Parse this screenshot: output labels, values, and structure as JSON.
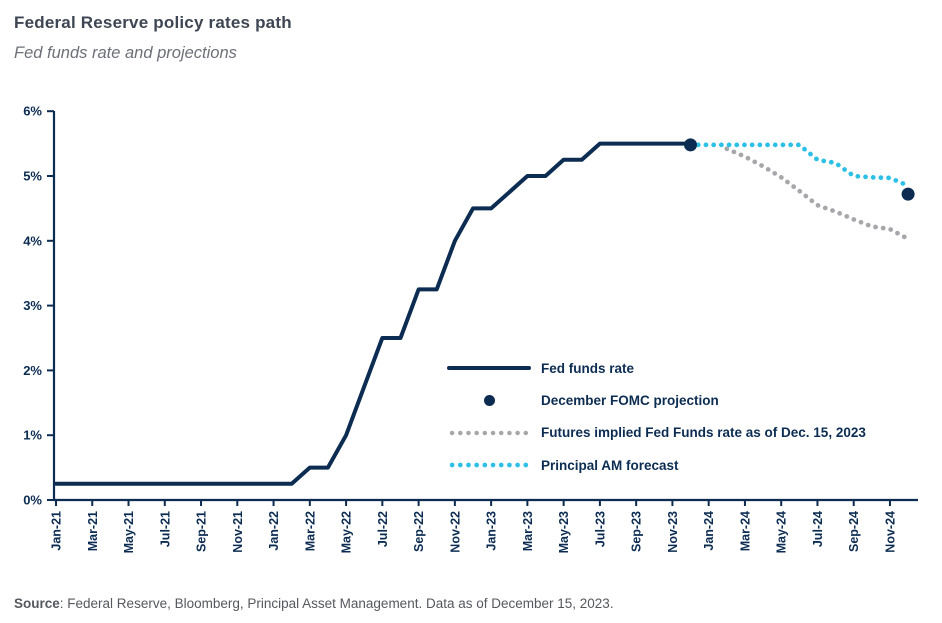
{
  "header": {
    "title": "Federal Reserve policy rates path",
    "subtitle": "Fed funds rate and projections"
  },
  "colors": {
    "navy": "#0c2c52",
    "cyan": "#2cc0e6",
    "gray": "#a6a7ab",
    "title_text": "#3e4653",
    "subtitle_text": "#6d7078",
    "source_text": "#55585e"
  },
  "legend": [
    {
      "label": "Fed funds rate",
      "swatch": "solid-line",
      "color": "#0c2c52"
    },
    {
      "label": "December FOMC projection",
      "swatch": "dot",
      "color": "#0c2c52"
    },
    {
      "label": "Futures implied Fed Funds rate as of Dec. 15, 2023",
      "swatch": "dotted-line",
      "color": "#a6a7ab"
    },
    {
      "label": "Principal AM forecast",
      "swatch": "dotted-line",
      "color": "#2cc0e6"
    }
  ],
  "source": {
    "label": "Source",
    "text": ": Federal Reserve, Bloomberg, Principal Asset Management. Data as of December 15, 2023."
  },
  "chart_data": {
    "type": "line",
    "title": "Federal Reserve policy rates path",
    "subtitle": "Fed funds rate and projections",
    "xlabel": "",
    "ylabel": "",
    "ylim": [
      0,
      6
    ],
    "grid": false,
    "legend_position": "inside-right-middle",
    "y_tick_labels": [
      "0%",
      "1%",
      "2%",
      "3%",
      "4%",
      "5%",
      "6%"
    ],
    "x_range": [
      "Jan-21",
      "Dec-24"
    ],
    "x_tick_labels": [
      "Jan-21",
      "Mar-21",
      "May-21",
      "Jul-21",
      "Sep-21",
      "Nov-21",
      "Jan-22",
      "Mar-22",
      "May-22",
      "Jul-22",
      "Sep-22",
      "Nov-22",
      "Jan-23",
      "Mar-23",
      "May-23",
      "Jul-23",
      "Sep-23",
      "Nov-23",
      "Jan-24",
      "Mar-24",
      "May-24",
      "Jul-24",
      "Sep-24",
      "Nov-24"
    ],
    "series": [
      {
        "name": "Fed funds rate",
        "type": "line",
        "style": "solid",
        "color": "#0c2c52",
        "start": "Jan-21",
        "values": [
          0.25,
          0.25,
          0.25,
          0.25,
          0.25,
          0.25,
          0.25,
          0.25,
          0.25,
          0.25,
          0.25,
          0.25,
          0.25,
          0.25,
          0.5,
          0.5,
          1.0,
          1.75,
          2.5,
          2.5,
          3.25,
          3.25,
          4.0,
          4.5,
          4.5,
          4.75,
          5.0,
          5.0,
          5.25,
          5.25,
          5.5,
          5.5,
          5.5,
          5.5,
          5.5,
          5.5
        ]
      },
      {
        "name": "Futures implied Fed Funds rate as of Dec. 15, 2023",
        "type": "line",
        "style": "dotted",
        "color": "#a6a7ab",
        "start": "Feb-24",
        "values": [
          5.42,
          5.3,
          5.15,
          4.98,
          4.77,
          4.55,
          4.45,
          4.33,
          4.22,
          4.18,
          4.03
        ]
      },
      {
        "name": "Principal AM forecast",
        "type": "line",
        "style": "dotted",
        "color": "#2cc0e6",
        "start": "Dec-23",
        "values": [
          5.48,
          5.48,
          5.48,
          5.48,
          5.48,
          5.48,
          5.48,
          5.25,
          5.2,
          5.0,
          4.98,
          4.97,
          4.85
        ]
      },
      {
        "name": "December FOMC projection",
        "type": "scatter",
        "color": "#0c2c52",
        "points": [
          {
            "x": "Dec-23",
            "y": 5.48
          },
          {
            "x": "Dec-24",
            "y": 4.72
          }
        ]
      }
    ]
  }
}
